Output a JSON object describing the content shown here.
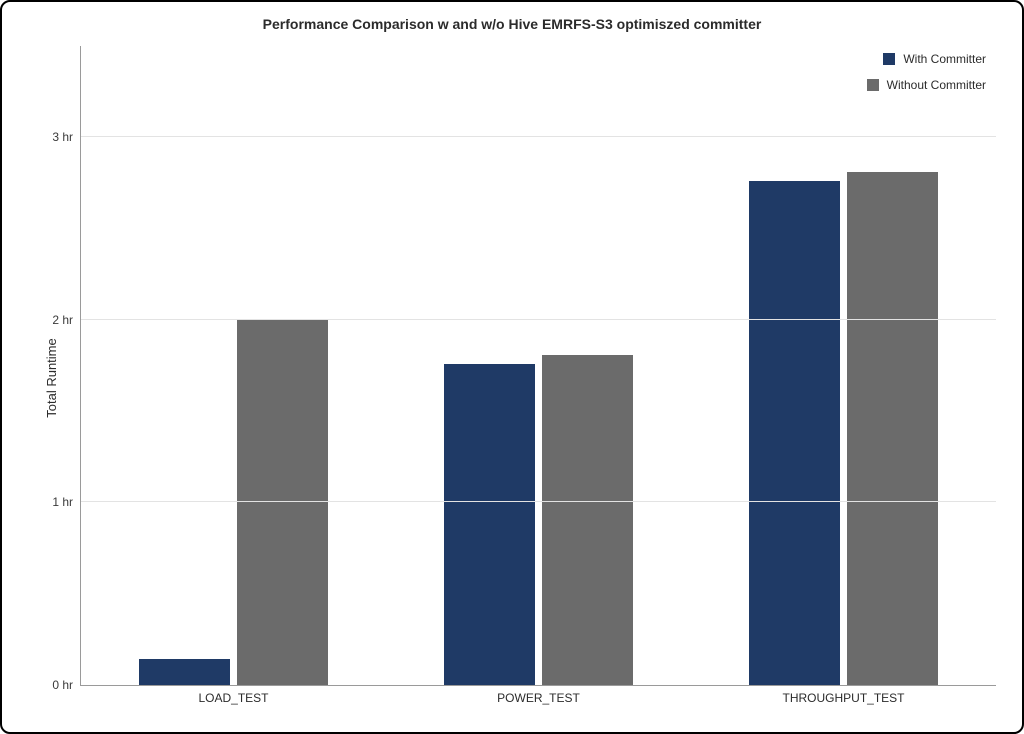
{
  "chart": {
    "type": "bar",
    "title": "Performance Comparison w and w/o Hive EMRFS-S3 optimiszed committer",
    "title_fontsize": 14,
    "ylabel": "Total Runtime",
    "ylabel_fontsize": 13,
    "categories": [
      "LOAD_TEST",
      "POWER_TEST",
      "THROUGHPUT_TEST"
    ],
    "series": [
      {
        "name": "With Committer",
        "color": "#1f3a66",
        "values": [
          0.14,
          1.76,
          2.76
        ]
      },
      {
        "name": "Without Committer",
        "color": "#6b6b6b",
        "values": [
          2.0,
          1.81,
          2.81
        ]
      }
    ],
    "ylim": [
      0,
      3.5
    ],
    "ytick_values": [
      0,
      1,
      2,
      3
    ],
    "ytick_labels": [
      "0 hr",
      "1 hr",
      "2 hr",
      "3 hr"
    ],
    "background_color": "#ffffff",
    "grid_color": "#e3e3e3",
    "axis_color": "#9a9a9a",
    "frame_border_color": "#000000",
    "bar_group_gap_pct": 38,
    "bar_inner_gap_pct": 2,
    "tick_label_fontsize": 12,
    "legend": {
      "position": "top-right",
      "fontsize": 12
    }
  }
}
